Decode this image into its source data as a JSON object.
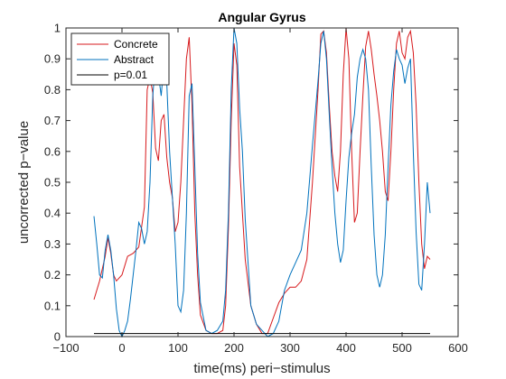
{
  "chart_data": {
    "type": "line",
    "title": "Angular Gyrus",
    "xlabel": "time(ms) peri−stimulus",
    "ylabel": "uncorrected p−value",
    "xlim": [
      -100,
      600
    ],
    "ylim": [
      0,
      1
    ],
    "xticks": [
      -100,
      0,
      100,
      200,
      300,
      400,
      500,
      600
    ],
    "xtick_labels": [
      "−100",
      "0",
      "100",
      "200",
      "300",
      "400",
      "500",
      "600"
    ],
    "yticks": [
      0,
      0.1,
      0.2,
      0.3,
      0.4,
      0.5,
      0.6,
      0.7,
      0.8,
      0.9,
      1
    ],
    "ytick_labels": [
      "0",
      "0.1",
      "0.2",
      "0.3",
      "0.4",
      "0.5",
      "0.6",
      "0.7",
      "0.8",
      "0.9",
      "1"
    ],
    "grid": false,
    "legend_position": "top-left",
    "series": [
      {
        "name": "Concrete",
        "color": "#d7191c",
        "points": [
          [
            -50,
            0.12
          ],
          [
            -40,
            0.18
          ],
          [
            -30,
            0.26
          ],
          [
            -25,
            0.32
          ],
          [
            -20,
            0.27
          ],
          [
            -15,
            0.2
          ],
          [
            -10,
            0.18
          ],
          [
            0,
            0.2
          ],
          [
            10,
            0.26
          ],
          [
            20,
            0.27
          ],
          [
            30,
            0.29
          ],
          [
            40,
            0.42
          ],
          [
            45,
            0.8
          ],
          [
            50,
            0.84
          ],
          [
            55,
            0.79
          ],
          [
            60,
            0.61
          ],
          [
            65,
            0.57
          ],
          [
            70,
            0.7
          ],
          [
            75,
            0.72
          ],
          [
            80,
            0.58
          ],
          [
            85,
            0.5
          ],
          [
            90,
            0.45
          ],
          [
            95,
            0.34
          ],
          [
            100,
            0.37
          ],
          [
            105,
            0.5
          ],
          [
            110,
            0.7
          ],
          [
            115,
            0.9
          ],
          [
            120,
            0.97
          ],
          [
            125,
            0.75
          ],
          [
            130,
            0.4
          ],
          [
            135,
            0.2
          ],
          [
            140,
            0.07
          ],
          [
            150,
            0.02
          ],
          [
            160,
            0.01
          ],
          [
            170,
            0.01
          ],
          [
            180,
            0.02
          ],
          [
            185,
            0.1
          ],
          [
            190,
            0.35
          ],
          [
            195,
            0.7
          ],
          [
            200,
            0.95
          ],
          [
            205,
            0.88
          ],
          [
            210,
            0.55
          ],
          [
            215,
            0.4
          ],
          [
            220,
            0.25
          ],
          [
            230,
            0.1
          ],
          [
            240,
            0.04
          ],
          [
            250,
            0.01
          ],
          [
            260,
            0.01
          ],
          [
            270,
            0.06
          ],
          [
            280,
            0.11
          ],
          [
            290,
            0.14
          ],
          [
            300,
            0.16
          ],
          [
            310,
            0.16
          ],
          [
            320,
            0.18
          ],
          [
            330,
            0.25
          ],
          [
            340,
            0.5
          ],
          [
            350,
            0.8
          ],
          [
            355,
            0.98
          ],
          [
            360,
            0.99
          ],
          [
            365,
            0.92
          ],
          [
            370,
            0.75
          ],
          [
            375,
            0.6
          ],
          [
            380,
            0.52
          ],
          [
            385,
            0.47
          ],
          [
            390,
            0.6
          ],
          [
            395,
            0.85
          ],
          [
            400,
            1.0
          ],
          [
            405,
            0.9
          ],
          [
            410,
            0.6
          ],
          [
            415,
            0.37
          ],
          [
            420,
            0.4
          ],
          [
            425,
            0.6
          ],
          [
            430,
            0.78
          ],
          [
            435,
            0.94
          ],
          [
            440,
            0.99
          ],
          [
            445,
            0.93
          ],
          [
            450,
            0.85
          ],
          [
            455,
            0.78
          ],
          [
            460,
            0.7
          ],
          [
            465,
            0.6
          ],
          [
            470,
            0.47
          ],
          [
            475,
            0.44
          ],
          [
            480,
            0.6
          ],
          [
            485,
            0.8
          ],
          [
            490,
            0.95
          ],
          [
            495,
            0.99
          ],
          [
            500,
            0.92
          ],
          [
            505,
            0.9
          ],
          [
            510,
            0.97
          ],
          [
            515,
            0.99
          ],
          [
            520,
            0.92
          ],
          [
            525,
            0.75
          ],
          [
            530,
            0.5
          ],
          [
            535,
            0.3
          ],
          [
            540,
            0.22
          ],
          [
            545,
            0.26
          ],
          [
            550,
            0.25
          ]
        ]
      },
      {
        "name": "Abstract",
        "color": "#0072bd",
        "points": [
          [
            -50,
            0.39
          ],
          [
            -45,
            0.3
          ],
          [
            -40,
            0.2
          ],
          [
            -35,
            0.19
          ],
          [
            -30,
            0.28
          ],
          [
            -25,
            0.33
          ],
          [
            -20,
            0.28
          ],
          [
            -15,
            0.2
          ],
          [
            -10,
            0.09
          ],
          [
            -5,
            0.02
          ],
          [
            0,
            0.0
          ],
          [
            5,
            0.02
          ],
          [
            10,
            0.05
          ],
          [
            15,
            0.12
          ],
          [
            20,
            0.2
          ],
          [
            25,
            0.28
          ],
          [
            30,
            0.37
          ],
          [
            35,
            0.35
          ],
          [
            40,
            0.3
          ],
          [
            45,
            0.34
          ],
          [
            50,
            0.5
          ],
          [
            55,
            0.78
          ],
          [
            60,
            0.9
          ],
          [
            65,
            0.85
          ],
          [
            70,
            0.78
          ],
          [
            75,
            0.89
          ],
          [
            80,
            0.82
          ],
          [
            85,
            0.6
          ],
          [
            90,
            0.45
          ],
          [
            95,
            0.3
          ],
          [
            100,
            0.1
          ],
          [
            105,
            0.08
          ],
          [
            110,
            0.15
          ],
          [
            115,
            0.4
          ],
          [
            120,
            0.78
          ],
          [
            125,
            0.82
          ],
          [
            130,
            0.55
          ],
          [
            135,
            0.27
          ],
          [
            140,
            0.11
          ],
          [
            150,
            0.02
          ],
          [
            160,
            0.01
          ],
          [
            170,
            0.02
          ],
          [
            180,
            0.05
          ],
          [
            185,
            0.15
          ],
          [
            190,
            0.4
          ],
          [
            195,
            0.8
          ],
          [
            200,
            1.0
          ],
          [
            205,
            0.95
          ],
          [
            210,
            0.74
          ],
          [
            215,
            0.6
          ],
          [
            220,
            0.38
          ],
          [
            230,
            0.1
          ],
          [
            240,
            0.04
          ],
          [
            250,
            0.02
          ],
          [
            260,
            0.0
          ],
          [
            270,
            0.01
          ],
          [
            280,
            0.05
          ],
          [
            290,
            0.15
          ],
          [
            300,
            0.2
          ],
          [
            310,
            0.24
          ],
          [
            320,
            0.28
          ],
          [
            330,
            0.4
          ],
          [
            340,
            0.62
          ],
          [
            350,
            0.83
          ],
          [
            355,
            0.95
          ],
          [
            360,
            0.99
          ],
          [
            365,
            0.9
          ],
          [
            370,
            0.72
          ],
          [
            375,
            0.55
          ],
          [
            380,
            0.4
          ],
          [
            385,
            0.3
          ],
          [
            390,
            0.24
          ],
          [
            395,
            0.28
          ],
          [
            400,
            0.44
          ],
          [
            405,
            0.58
          ],
          [
            410,
            0.66
          ],
          [
            415,
            0.72
          ],
          [
            420,
            0.84
          ],
          [
            425,
            0.9
          ],
          [
            430,
            0.93
          ],
          [
            435,
            0.9
          ],
          [
            440,
            0.8
          ],
          [
            445,
            0.55
          ],
          [
            450,
            0.33
          ],
          [
            455,
            0.2
          ],
          [
            460,
            0.16
          ],
          [
            465,
            0.2
          ],
          [
            470,
            0.33
          ],
          [
            475,
            0.55
          ],
          [
            480,
            0.75
          ],
          [
            485,
            0.86
          ],
          [
            490,
            0.93
          ],
          [
            495,
            0.9
          ],
          [
            500,
            0.88
          ],
          [
            505,
            0.82
          ],
          [
            510,
            0.87
          ],
          [
            515,
            0.9
          ],
          [
            520,
            0.6
          ],
          [
            525,
            0.34
          ],
          [
            530,
            0.17
          ],
          [
            535,
            0.15
          ],
          [
            540,
            0.3
          ],
          [
            545,
            0.5
          ],
          [
            550,
            0.4
          ]
        ]
      },
      {
        "name": "p=0.01",
        "color": "#000000",
        "points": [
          [
            -50,
            0.01
          ],
          [
            550,
            0.01
          ]
        ]
      }
    ]
  }
}
